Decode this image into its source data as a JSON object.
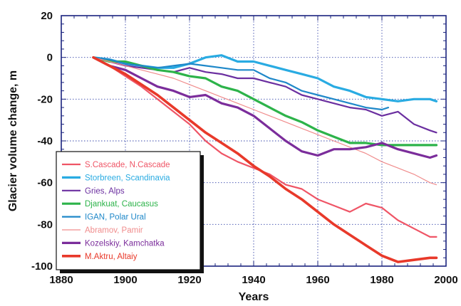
{
  "chart_data": {
    "type": "line",
    "xlabel": "Years",
    "ylabel": "Glacier volume change, m",
    "xlim": [
      1880,
      2000
    ],
    "ylim": [
      -100,
      20
    ],
    "x_ticks": [
      "1880",
      "1900",
      "1920",
      "1940",
      "1960",
      "1980",
      "2000"
    ],
    "y_ticks": [
      "20",
      "0",
      "-20",
      "-40",
      "-60",
      "-80",
      "-100"
    ],
    "grid": true,
    "legend_position": "lower-left",
    "series": [
      {
        "name": "S.Cascade, N.Cascade",
        "color": "#ef5566",
        "width": 2.2,
        "points": [
          [
            1890,
            0
          ],
          [
            1895,
            -4
          ],
          [
            1900,
            -9
          ],
          [
            1905,
            -14
          ],
          [
            1910,
            -20
          ],
          [
            1915,
            -26
          ],
          [
            1920,
            -32
          ],
          [
            1925,
            -40
          ],
          [
            1930,
            -46
          ],
          [
            1935,
            -50
          ],
          [
            1940,
            -53
          ],
          [
            1945,
            -56
          ],
          [
            1950,
            -61
          ],
          [
            1955,
            -63
          ],
          [
            1960,
            -68
          ],
          [
            1965,
            -71
          ],
          [
            1970,
            -74
          ],
          [
            1975,
            -70
          ],
          [
            1980,
            -72
          ],
          [
            1985,
            -78
          ],
          [
            1990,
            -82
          ],
          [
            1995,
            -86
          ],
          [
            1997,
            -86
          ]
        ]
      },
      {
        "name": "Storbreen, Scandinavia",
        "color": "#29abe2",
        "width": 3.2,
        "points": [
          [
            1890,
            0
          ],
          [
            1895,
            -1
          ],
          [
            1900,
            -3
          ],
          [
            1905,
            -4
          ],
          [
            1910,
            -5
          ],
          [
            1915,
            -5
          ],
          [
            1920,
            -3
          ],
          [
            1925,
            0
          ],
          [
            1930,
            1
          ],
          [
            1935,
            -2
          ],
          [
            1940,
            -2
          ],
          [
            1945,
            -4
          ],
          [
            1950,
            -6
          ],
          [
            1955,
            -8
          ],
          [
            1960,
            -10
          ],
          [
            1965,
            -14
          ],
          [
            1970,
            -16
          ],
          [
            1975,
            -19
          ],
          [
            1980,
            -20
          ],
          [
            1985,
            -21
          ],
          [
            1990,
            -20
          ],
          [
            1995,
            -20
          ],
          [
            1997,
            -21
          ]
        ]
      },
      {
        "name": "Gries, Alps",
        "color": "#6b2fa0",
        "width": 2.2,
        "points": [
          [
            1890,
            0
          ],
          [
            1895,
            -2
          ],
          [
            1900,
            -4
          ],
          [
            1905,
            -5
          ],
          [
            1910,
            -6
          ],
          [
            1915,
            -7
          ],
          [
            1920,
            -5
          ],
          [
            1925,
            -7
          ],
          [
            1930,
            -8
          ],
          [
            1935,
            -10
          ],
          [
            1940,
            -10
          ],
          [
            1945,
            -12
          ],
          [
            1950,
            -14
          ],
          [
            1955,
            -18
          ],
          [
            1960,
            -20
          ],
          [
            1965,
            -22
          ],
          [
            1970,
            -24
          ],
          [
            1975,
            -25
          ],
          [
            1980,
            -28
          ],
          [
            1985,
            -26
          ],
          [
            1990,
            -32
          ],
          [
            1995,
            -35
          ],
          [
            1997,
            -36
          ]
        ]
      },
      {
        "name": "Djankuat, Caucasus",
        "color": "#2db34a",
        "width": 3.2,
        "points": [
          [
            1890,
            0
          ],
          [
            1895,
            -2
          ],
          [
            1900,
            -2
          ],
          [
            1905,
            -4
          ],
          [
            1910,
            -6
          ],
          [
            1915,
            -7
          ],
          [
            1920,
            -9
          ],
          [
            1925,
            -10
          ],
          [
            1930,
            -14
          ],
          [
            1935,
            -16
          ],
          [
            1940,
            -20
          ],
          [
            1945,
            -24
          ],
          [
            1950,
            -28
          ],
          [
            1955,
            -31
          ],
          [
            1960,
            -35
          ],
          [
            1965,
            -38
          ],
          [
            1970,
            -41
          ],
          [
            1975,
            -41
          ],
          [
            1980,
            -42
          ],
          [
            1985,
            -42
          ],
          [
            1990,
            -42
          ],
          [
            1995,
            -42
          ],
          [
            1997,
            -42
          ]
        ]
      },
      {
        "name": "IGAN, Polar Ural",
        "color": "#1f88c9",
        "width": 2.2,
        "points": [
          [
            1890,
            0
          ],
          [
            1895,
            -1
          ],
          [
            1900,
            -3
          ],
          [
            1905,
            -4
          ],
          [
            1910,
            -5
          ],
          [
            1915,
            -4
          ],
          [
            1920,
            -3
          ],
          [
            1925,
            -4
          ],
          [
            1930,
            -5
          ],
          [
            1935,
            -6
          ],
          [
            1940,
            -6
          ],
          [
            1945,
            -10
          ],
          [
            1950,
            -12
          ],
          [
            1955,
            -16
          ],
          [
            1960,
            -18
          ],
          [
            1965,
            -20
          ],
          [
            1970,
            -22
          ],
          [
            1975,
            -24
          ],
          [
            1980,
            -25
          ],
          [
            1982,
            -24
          ]
        ]
      },
      {
        "name": "Abramov, Pamir",
        "color": "#f08c8c",
        "width": 1.2,
        "points": [
          [
            1890,
            0
          ],
          [
            1895,
            -2
          ],
          [
            1900,
            -4
          ],
          [
            1905,
            -6
          ],
          [
            1910,
            -8
          ],
          [
            1915,
            -10
          ],
          [
            1920,
            -13
          ],
          [
            1925,
            -16
          ],
          [
            1930,
            -19
          ],
          [
            1935,
            -22
          ],
          [
            1940,
            -25
          ],
          [
            1945,
            -28
          ],
          [
            1950,
            -31
          ],
          [
            1955,
            -34
          ],
          [
            1960,
            -37
          ],
          [
            1965,
            -40
          ],
          [
            1970,
            -43
          ],
          [
            1975,
            -46
          ],
          [
            1980,
            -50
          ],
          [
            1985,
            -53
          ],
          [
            1990,
            -56
          ],
          [
            1995,
            -60
          ],
          [
            1997,
            -61
          ]
        ]
      },
      {
        "name": "Kozelskiy,  Kamchatka",
        "color": "#7b2d9b",
        "width": 3.2,
        "points": [
          [
            1890,
            0
          ],
          [
            1895,
            -4
          ],
          [
            1900,
            -6
          ],
          [
            1905,
            -10
          ],
          [
            1910,
            -14
          ],
          [
            1915,
            -16
          ],
          [
            1920,
            -19
          ],
          [
            1925,
            -18
          ],
          [
            1930,
            -22
          ],
          [
            1935,
            -24
          ],
          [
            1940,
            -28
          ],
          [
            1945,
            -34
          ],
          [
            1950,
            -40
          ],
          [
            1955,
            -45
          ],
          [
            1960,
            -47
          ],
          [
            1965,
            -44
          ],
          [
            1970,
            -44
          ],
          [
            1975,
            -43
          ],
          [
            1980,
            -41
          ],
          [
            1985,
            -44
          ],
          [
            1990,
            -46
          ],
          [
            1995,
            -48
          ],
          [
            1997,
            -47
          ]
        ]
      },
      {
        "name": "M.Aktru,  Altaiy",
        "color": "#e8392a",
        "width": 3.6,
        "points": [
          [
            1890,
            0
          ],
          [
            1895,
            -4
          ],
          [
            1900,
            -8
          ],
          [
            1905,
            -13
          ],
          [
            1910,
            -18
          ],
          [
            1915,
            -24
          ],
          [
            1920,
            -30
          ],
          [
            1925,
            -36
          ],
          [
            1930,
            -41
          ],
          [
            1935,
            -46
          ],
          [
            1940,
            -52
          ],
          [
            1945,
            -57
          ],
          [
            1950,
            -63
          ],
          [
            1955,
            -68
          ],
          [
            1960,
            -74
          ],
          [
            1965,
            -80
          ],
          [
            1970,
            -85
          ],
          [
            1975,
            -90
          ],
          [
            1980,
            -95
          ],
          [
            1985,
            -98
          ],
          [
            1990,
            -97
          ],
          [
            1995,
            -96
          ],
          [
            1997,
            -96
          ]
        ]
      }
    ]
  }
}
